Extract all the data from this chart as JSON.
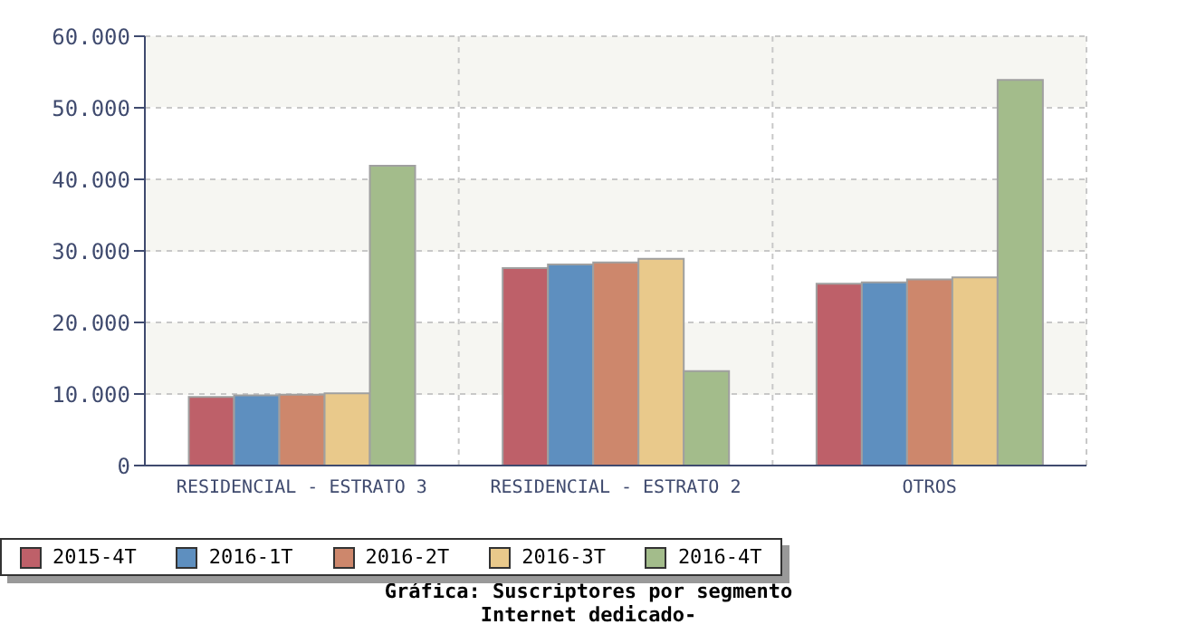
{
  "chart_data": {
    "type": "bar",
    "title": "Gráfica: Suscriptores por segmento",
    "subtitle": "Internet dedicado-",
    "categories": [
      "RESIDENCIAL - ESTRATO 3",
      "RESIDENCIAL - ESTRATO 2",
      "OTROS"
    ],
    "series": [
      {
        "name": "2015-4T",
        "color": "#be6069",
        "values": [
          9600,
          27600,
          25400
        ]
      },
      {
        "name": "2016-1T",
        "color": "#5e8fbf",
        "values": [
          9800,
          28100,
          25600
        ]
      },
      {
        "name": "2016-2T",
        "color": "#cd876c",
        "values": [
          9900,
          28400,
          26000
        ]
      },
      {
        "name": "2016-3T",
        "color": "#e9c98b",
        "values": [
          10100,
          28900,
          26300
        ]
      },
      {
        "name": "2016-4T",
        "color": "#a3bc8b",
        "values": [
          41900,
          13200,
          53900
        ]
      }
    ],
    "ylim": [
      0,
      60000
    ],
    "yticks": [
      0,
      {
        "value": 10000,
        "label": "10.000"
      },
      {
        "value": 20000,
        "label": "20.000"
      },
      {
        "value": 30000,
        "label": "30.000"
      },
      {
        "value": 40000,
        "label": "40.000"
      },
      {
        "value": 50000,
        "label": "50.000"
      },
      {
        "value": 60000,
        "label": "60.000"
      }
    ],
    "grid": true,
    "legend": "bottom"
  }
}
